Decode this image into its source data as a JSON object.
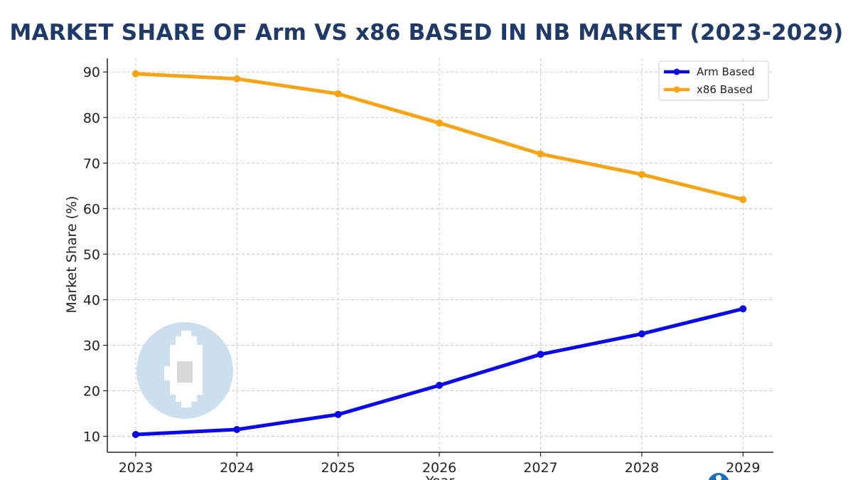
{
  "chart_data": {
    "type": "line",
    "title": "MARKET SHARE OF Arm VS x86 BASED IN NB MARKET (2023-2029)",
    "xlabel": "Year",
    "ylabel": "Market Share (%)",
    "categories": [
      "2023",
      "2024",
      "2025",
      "2026",
      "2027",
      "2028",
      "2029"
    ],
    "x": [
      2023,
      2024,
      2025,
      2026,
      2027,
      2028,
      2029
    ],
    "xlim": [
      2022.72,
      2029.3
    ],
    "ylim": [
      6.5,
      93
    ],
    "yticks": [
      10,
      20,
      30,
      40,
      50,
      60,
      70,
      80,
      90
    ],
    "grid": true,
    "legend_position": "top-right",
    "series": [
      {
        "name": "Arm Based",
        "color": "#0a0ae6",
        "values": [
          10.4,
          11.5,
          14.8,
          21.2,
          28.0,
          32.5,
          38.0
        ]
      },
      {
        "name": "x86 Based",
        "color": "#f5a418",
        "values": [
          89.6,
          88.5,
          85.2,
          78.8,
          72.0,
          67.5,
          62.0
        ]
      }
    ]
  }
}
